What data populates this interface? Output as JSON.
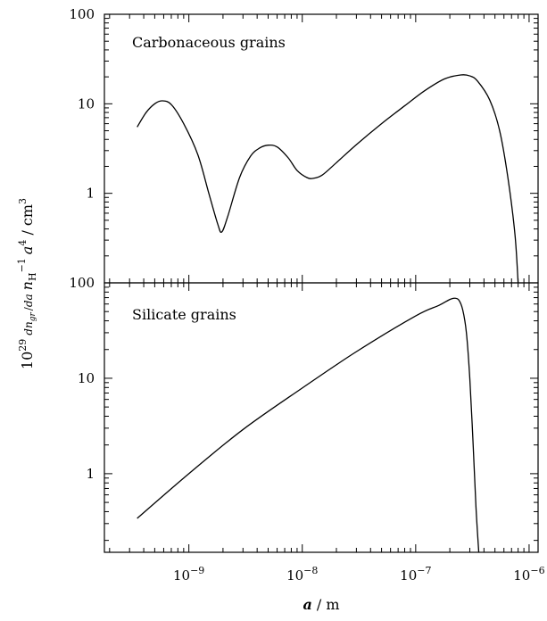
{
  "chart_data": [
    {
      "type": "line",
      "title": "",
      "annotation": "Carbonaceous grains",
      "x_scale": "log",
      "y_scale": "log",
      "xlim": [
        1.8e-10,
        1.2e-06
      ],
      "ylim": [
        0.1,
        100
      ],
      "y_ticks": [
        1,
        10,
        100
      ],
      "y_tick_labels": [
        "1",
        "10",
        "100"
      ],
      "grid": false,
      "series": [
        {
          "x": [
            3.5e-10,
            4.2e-10,
            5e-10,
            5.8e-10,
            7e-10,
            9e-10,
            1.2e-09,
            1.5e-09,
            1.8e-09,
            1.95e-09,
            2.2e-09,
            2.8e-09,
            3.5e-09,
            4.2e-09,
            5e-09,
            6e-09,
            7.5e-09,
            9e-09,
            1.1e-08,
            1.25e-08,
            1.5e-08,
            2e-08,
            3e-08,
            5e-08,
            8e-08,
            1.2e-07,
            1.8e-07,
            2.5e-07,
            3e-07,
            3.5e-07,
            4.5e-07,
            5.5e-07,
            6.5e-07,
            7.5e-07,
            8e-07
          ],
          "y": [
            5.5,
            8.0,
            10.0,
            10.8,
            9.8,
            6.0,
            2.7,
            1.0,
            0.45,
            0.37,
            0.55,
            1.5,
            2.6,
            3.2,
            3.45,
            3.3,
            2.5,
            1.8,
            1.5,
            1.47,
            1.6,
            2.2,
            3.5,
            6.0,
            9.5,
            14.0,
            19.0,
            21.0,
            20.5,
            18.0,
            11.0,
            5.0,
            1.5,
            0.35,
            0.1
          ]
        }
      ]
    },
    {
      "type": "line",
      "title": "",
      "annotation": "Silicate grains",
      "x_scale": "log",
      "y_scale": "log",
      "xlim": [
        1.8e-10,
        1.2e-06
      ],
      "ylim": [
        0.15,
        100
      ],
      "y_ticks": [
        1,
        10,
        100
      ],
      "y_tick_labels": [
        "1",
        "10",
        "100"
      ],
      "grid": false,
      "series": [
        {
          "x": [
            3.5e-10,
            1e-09,
            3e-09,
            1e-08,
            3e-08,
            1e-07,
            1.6e-07,
            2e-07,
            2.2e-07,
            2.4e-07,
            2.6e-07,
            2.8e-07,
            3e-07,
            3.2e-07,
            3.4e-07,
            3.6e-07
          ],
          "y": [
            0.34,
            1.0,
            2.9,
            7.9,
            19.0,
            45.0,
            58.0,
            67.0,
            69.0,
            66.0,
            52.0,
            30.0,
            10.0,
            2.2,
            0.45,
            0.15
          ]
        }
      ]
    }
  ],
  "x_axis": {
    "ticks": [
      1e-09,
      1e-08,
      1e-07,
      1e-06
    ],
    "tick_base": [
      "10",
      "10",
      "10",
      "10"
    ],
    "tick_exp": [
      "−9",
      "−8",
      "−7",
      "−6"
    ],
    "label_var": "a",
    "label_unit": " / m"
  },
  "y_axis": {
    "coef": "10",
    "coef_exp": "29",
    "frac_num": "dn",
    "frac_num_sub": "gr",
    "frac_den": "da",
    "n": "n",
    "n_sub": "H",
    "n_sup": "−1",
    "a": "a",
    "a_sup": "4",
    "unit": " / cm",
    "unit_sup": "3"
  },
  "colors": {
    "line": "#000000",
    "axis": "#000000",
    "background": "#ffffff"
  }
}
